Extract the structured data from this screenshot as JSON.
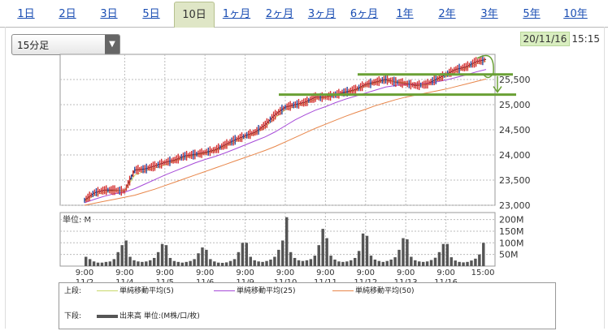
{
  "tabs": [
    {
      "label": "1日",
      "active": false
    },
    {
      "label": "2日",
      "active": false
    },
    {
      "label": "3日",
      "active": false
    },
    {
      "label": "5日",
      "active": false
    },
    {
      "label": "10日",
      "active": true
    },
    {
      "label": "1ヶ月",
      "active": false
    },
    {
      "label": "2ヶ月",
      "active": false
    },
    {
      "label": "3ヶ月",
      "active": false
    },
    {
      "label": "6ヶ月",
      "active": false
    },
    {
      "label": "1年",
      "active": false
    },
    {
      "label": "2年",
      "active": false
    },
    {
      "label": "3年",
      "active": false
    },
    {
      "label": "5年",
      "active": false
    },
    {
      "label": "10年",
      "active": false
    }
  ],
  "interval_select": {
    "value": "15分足"
  },
  "last_update": {
    "date": "20/11/16",
    "time": "15:15"
  },
  "colors": {
    "sma5": "#c8d86a",
    "sma25": "#a64ad8",
    "sma50": "#e8864a",
    "annotation": "#6aa035",
    "up": "#d43030",
    "down": "#2a4aa0",
    "volume": "#555555"
  },
  "chart_data": [
    {
      "type": "line",
      "panel": "price",
      "ylim": [
        23000,
        26000
      ],
      "y_ticks": [
        "23,000",
        "23,500",
        "24,000",
        "24,500",
        "25,000",
        "25,500"
      ],
      "y_tick_values": [
        23000,
        23500,
        24000,
        24500,
        25000,
        25500
      ],
      "sessions": [
        "11/2",
        "11/4",
        "11/5",
        "11/6",
        "11/9",
        "11/10",
        "11/11",
        "11/12",
        "11/13",
        "11/16"
      ],
      "x": [
        0,
        0.25,
        0.5,
        0.75,
        1,
        1.25,
        1.5,
        1.75,
        2,
        2.25,
        2.5,
        2.75,
        3,
        3.25,
        3.5,
        3.75,
        4,
        4.25,
        4.5,
        4.75,
        5,
        5.25,
        5.5,
        5.75,
        6,
        6.25,
        6.5,
        6.75,
        7,
        7.25,
        7.5,
        7.75,
        8,
        8.25,
        8.5,
        8.75,
        9,
        9.25,
        9.5,
        9.75,
        10
      ],
      "series": [
        {
          "key": "close",
          "values": [
            23100,
            23250,
            23300,
            23300,
            23280,
            23700,
            23720,
            23780,
            23850,
            23900,
            23980,
            24010,
            24050,
            24100,
            24200,
            24300,
            24380,
            24450,
            24600,
            24800,
            24950,
            25000,
            25050,
            25150,
            25150,
            25200,
            25250,
            25300,
            25400,
            25450,
            25500,
            25450,
            25420,
            25380,
            25400,
            25500,
            25600,
            25700,
            25750,
            25850,
            25900
          ]
        },
        {
          "key": "sma5",
          "values": [
            23080,
            23200,
            23260,
            23290,
            23290,
            23600,
            23680,
            23740,
            23800,
            23880,
            23950,
            23990,
            24030,
            24080,
            24170,
            24260,
            24340,
            24420,
            24550,
            24740,
            24900,
            24960,
            25020,
            25110,
            25140,
            25180,
            25230,
            25280,
            25370,
            25430,
            25470,
            25460,
            25430,
            25400,
            25390,
            25460,
            25560,
            25650,
            25720,
            25810,
            25860
          ]
        },
        {
          "key": "sma25",
          "values": [
            23050,
            23120,
            23180,
            23230,
            23260,
            23330,
            23420,
            23510,
            23600,
            23680,
            23760,
            23840,
            23910,
            23970,
            24040,
            24120,
            24200,
            24280,
            24360,
            24460,
            24580,
            24700,
            24800,
            24890,
            24960,
            25040,
            25110,
            25170,
            25230,
            25290,
            25350,
            25380,
            25400,
            25410,
            25420,
            25450,
            25490,
            25540,
            25590,
            25650,
            25700
          ]
        },
        {
          "key": "sma50",
          "values": [
            23000,
            23040,
            23080,
            23120,
            23160,
            23200,
            23260,
            23320,
            23390,
            23460,
            23530,
            23600,
            23670,
            23740,
            23810,
            23880,
            23950,
            24020,
            24090,
            24170,
            24260,
            24350,
            24440,
            24530,
            24610,
            24690,
            24770,
            24840,
            24910,
            24980,
            25040,
            25100,
            25150,
            25190,
            25230,
            25270,
            25310,
            25360,
            25410,
            25460,
            25510
          ]
        }
      ],
      "annotations": [
        25600,
        25200
      ]
    },
    {
      "type": "bar",
      "panel": "volume",
      "label": "単位: M",
      "ylim": [
        0,
        230
      ],
      "y_ticks": [
        "200M",
        "150M",
        "100M",
        "50M"
      ],
      "y_tick_values": [
        200,
        150,
        100,
        50
      ],
      "x_ticks": [
        {
          "time": "9:00",
          "date": "11/2",
          "pos": 0
        },
        {
          "time": "9:00",
          "date": "11/4",
          "pos": 1
        },
        {
          "time": "9:00",
          "date": "11/5",
          "pos": 2
        },
        {
          "time": "9:00",
          "date": "11/6",
          "pos": 3
        },
        {
          "time": "9:00",
          "date": "11/9",
          "pos": 4
        },
        {
          "time": "9:00",
          "date": "11/10",
          "pos": 5
        },
        {
          "time": "9:00",
          "date": "11/11",
          "pos": 6
        },
        {
          "time": "9:00",
          "date": "11/12",
          "pos": 7
        },
        {
          "time": "9:00",
          "date": "11/13",
          "pos": 8
        },
        {
          "time": "9:00",
          "date": "11/16",
          "pos": 9
        },
        {
          "time": "15:00",
          "date": "",
          "pos": 9.92
        }
      ],
      "session_volumes": [
        [
          40,
          30,
          20,
          15,
          15,
          18,
          20,
          30,
          60,
          90
        ],
        [
          110,
          40,
          25,
          20,
          18,
          20,
          25,
          35,
          60,
          95
        ],
        [
          90,
          35,
          22,
          18,
          15,
          18,
          22,
          30,
          55,
          80
        ],
        [
          70,
          30,
          20,
          15,
          14,
          16,
          22,
          30,
          60,
          100
        ],
        [
          100,
          40,
          25,
          20,
          18,
          22,
          28,
          40,
          70,
          110
        ],
        [
          210,
          60,
          35,
          25,
          22,
          25,
          30,
          45,
          90,
          160
        ],
        [
          120,
          45,
          28,
          20,
          18,
          20,
          25,
          35,
          65,
          140
        ],
        [
          130,
          45,
          28,
          22,
          18,
          22,
          28,
          38,
          70,
          120
        ],
        [
          115,
          40,
          25,
          20,
          18,
          20,
          26,
          36,
          60,
          95
        ],
        [
          95,
          38,
          24,
          18,
          16,
          18,
          24,
          32,
          50,
          100
        ]
      ]
    }
  ],
  "legend": {
    "upper_label": "上段:",
    "upper_items": [
      {
        "label": "単純移動平均(5)"
      },
      {
        "label": "単純移動平均(25)"
      },
      {
        "label": "単純移動平均(50)"
      }
    ],
    "lower_label": "下段:",
    "lower_items": [
      {
        "label": "出来高 単位:(M株/口/枚)"
      }
    ]
  }
}
